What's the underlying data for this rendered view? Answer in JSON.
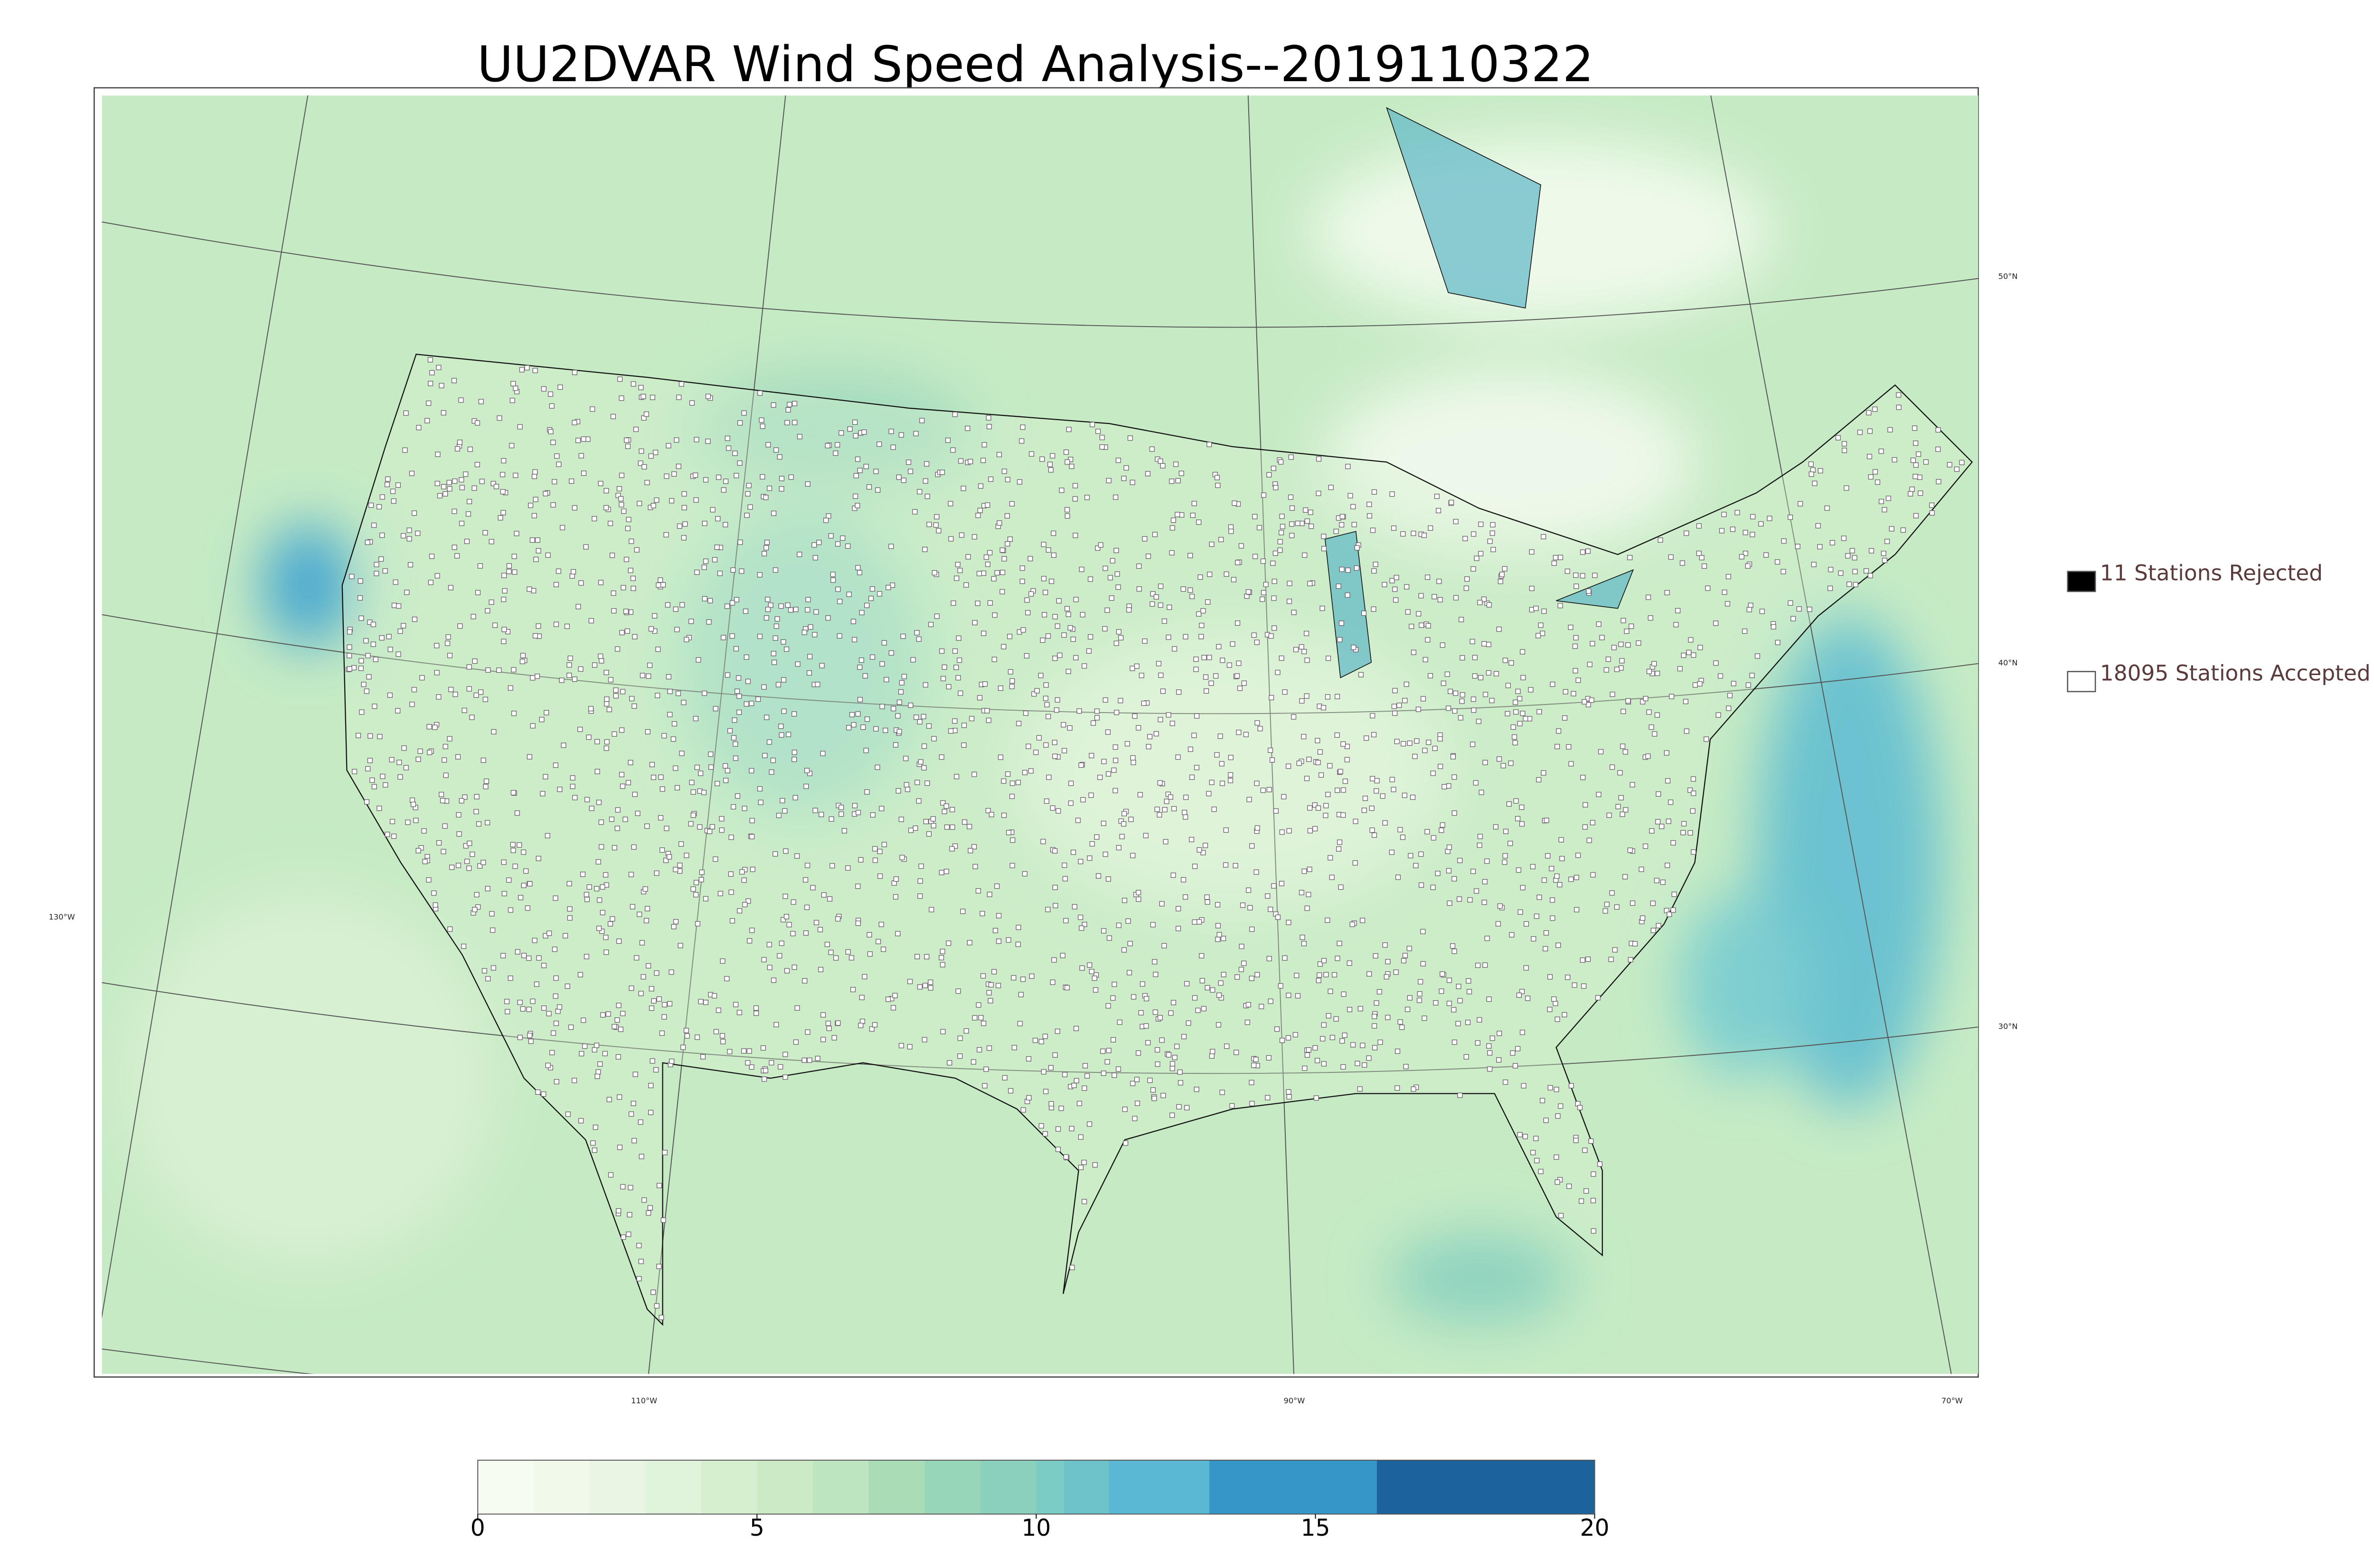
{
  "title": "UU2DVAR Wind Speed Analysis--2019110322",
  "legend": [
    {
      "label": "11 Stations Rejected",
      "fill": "#000000"
    },
    {
      "label": "18095 Stations Accepted",
      "fill": "#ffffff"
    }
  ],
  "graticule": {
    "longitudes": [
      "130°W",
      "110°W",
      "90°W",
      "70°W"
    ],
    "latitudes": [
      "50°N",
      "40°N",
      "30°N"
    ]
  },
  "colorbar": {
    "lim": [
      0,
      20
    ],
    "ticks": [
      0,
      5,
      10,
      15,
      20
    ],
    "bounds": [
      0,
      1,
      2,
      3,
      4,
      5,
      6,
      7,
      8,
      9,
      10,
      10.5,
      11.3,
      13.1,
      16.1,
      20
    ],
    "colors": [
      "#f7fcf0",
      "#f0f9ea",
      "#e8f6e3",
      "#e0f3db",
      "#d5efcf",
      "#ccebc5",
      "#bde5bf",
      "#a8ddb5",
      "#98d6ba",
      "#8ad0bd",
      "#7bccc4",
      "#6dc3c9",
      "#5ab8d4",
      "#3796c8",
      "#1b639a"
    ]
  }
}
